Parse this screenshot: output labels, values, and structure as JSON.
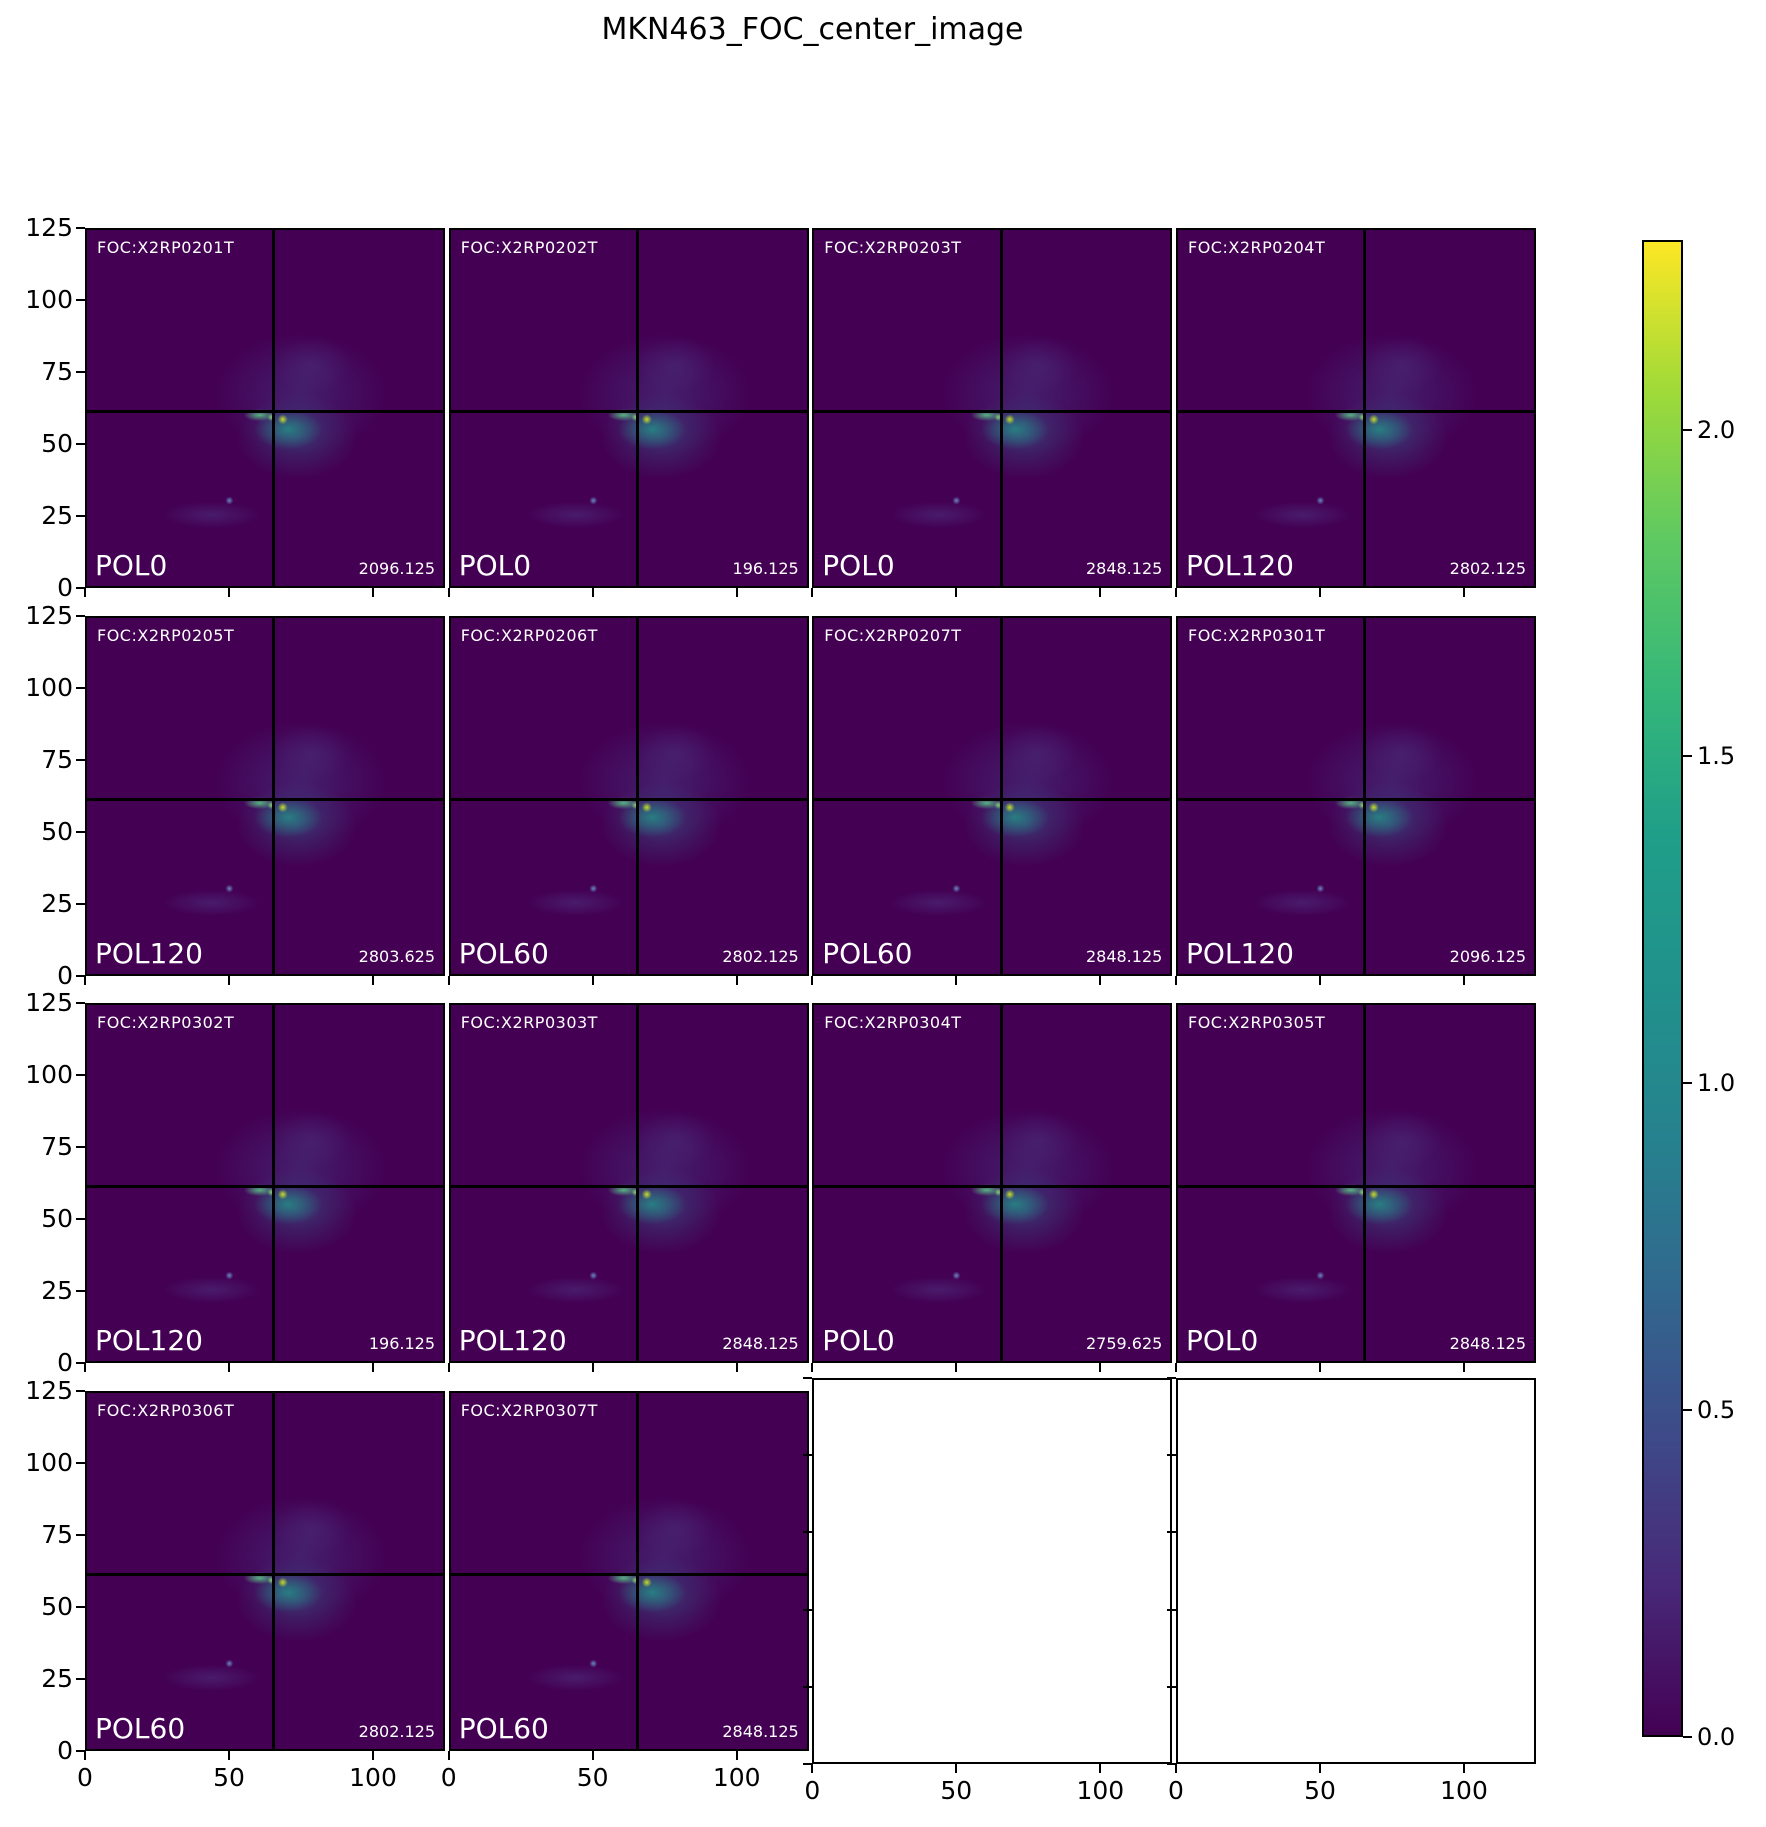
{
  "title": "MKN463_FOC_center_image",
  "chart_data": {
    "type": "heatmap",
    "title": "MKN463_FOC_center_image",
    "colormap": "viridis",
    "panel_background": "#440154",
    "grid": {
      "rows": 4,
      "cols": 4,
      "filled_panels": 14,
      "empty_panels": 2
    },
    "x_range": [
      0,
      125
    ],
    "y_range": [
      0,
      125
    ],
    "x_tick_labels": [
      "0",
      "50",
      "100"
    ],
    "x_tick_values": [
      0,
      50,
      100
    ],
    "y_tick_labels": [
      "0",
      "25",
      "50",
      "75",
      "100",
      "125"
    ],
    "y_tick_values": [
      0,
      25,
      50,
      75,
      100,
      125
    ],
    "crosshair": {
      "x_frac": 0.525,
      "y_frac": 0.51
    },
    "source_features": {
      "description": "compact bright nucleus at crosshair intersection with teal nebulosity extending to lower right and a faint point source at lower left",
      "peak_value": 2.29,
      "background_value": 0.0
    },
    "panels": [
      {
        "foc_id": "FOC:X2RP0201T",
        "pol": "POL0",
        "exposure": "2096.125",
        "empty": false
      },
      {
        "foc_id": "FOC:X2RP0202T",
        "pol": "POL0",
        "exposure": "196.125",
        "empty": false
      },
      {
        "foc_id": "FOC:X2RP0203T",
        "pol": "POL0",
        "exposure": "2848.125",
        "empty": false
      },
      {
        "foc_id": "FOC:X2RP0204T",
        "pol": "POL120",
        "exposure": "2802.125",
        "empty": false
      },
      {
        "foc_id": "FOC:X2RP0205T",
        "pol": "POL120",
        "exposure": "2803.625",
        "empty": false
      },
      {
        "foc_id": "FOC:X2RP0206T",
        "pol": "POL60",
        "exposure": "2802.125",
        "empty": false
      },
      {
        "foc_id": "FOC:X2RP0207T",
        "pol": "POL60",
        "exposure": "2848.125",
        "empty": false
      },
      {
        "foc_id": "FOC:X2RP0301T",
        "pol": "POL120",
        "exposure": "2096.125",
        "empty": false
      },
      {
        "foc_id": "FOC:X2RP0302T",
        "pol": "POL120",
        "exposure": "196.125",
        "empty": false
      },
      {
        "foc_id": "FOC:X2RP0303T",
        "pol": "POL120",
        "exposure": "2848.125",
        "empty": false
      },
      {
        "foc_id": "FOC:X2RP0304T",
        "pol": "POL0",
        "exposure": "2759.625",
        "empty": false
      },
      {
        "foc_id": "FOC:X2RP0305T",
        "pol": "POL0",
        "exposure": "2848.125",
        "empty": false
      },
      {
        "foc_id": "FOC:X2RP0306T",
        "pol": "POL60",
        "exposure": "2802.125",
        "empty": false
      },
      {
        "foc_id": "FOC:X2RP0307T",
        "pol": "POL60",
        "exposure": "2848.125",
        "empty": false
      },
      {
        "empty": true
      },
      {
        "empty": true
      }
    ],
    "colorbar": {
      "vmin": 0.0,
      "vmax": 2.29,
      "tick_labels": [
        "0.0",
        "0.5",
        "1.0",
        "1.5",
        "2.0"
      ],
      "tick_values": [
        0.0,
        0.5,
        1.0,
        1.5,
        2.0
      ],
      "gradient_stops": [
        "#440154",
        "#482878",
        "#3e4a89",
        "#31688e",
        "#26828e",
        "#21918c",
        "#1f9e89",
        "#35b779",
        "#5ec962",
        "#9fda39",
        "#fde725"
      ]
    }
  }
}
